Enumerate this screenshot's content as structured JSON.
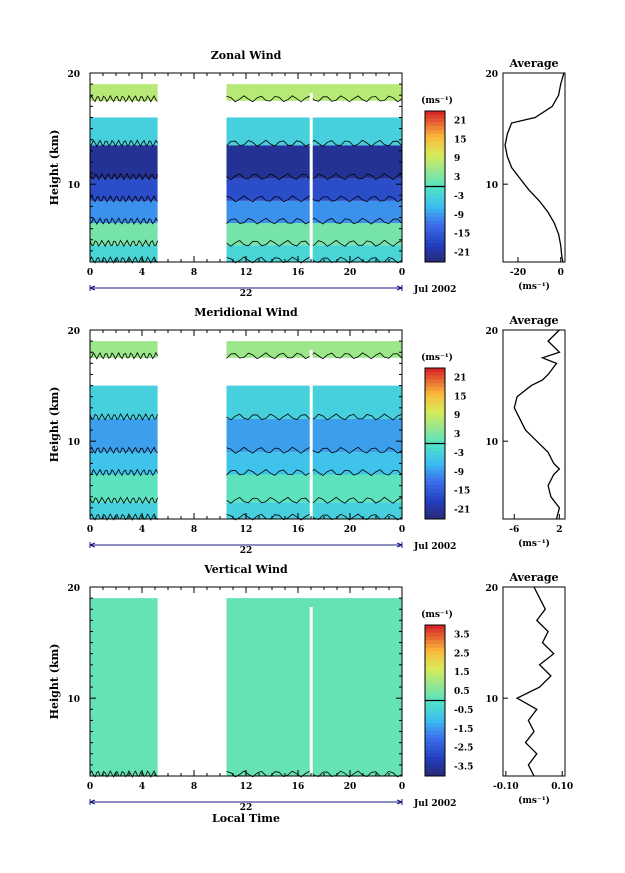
{
  "chart_data": [
    {
      "type": "heatmap",
      "title": "Zonal Wind",
      "ylabel": "Height (km)",
      "xticks": [
        "0",
        "4",
        "8",
        "12",
        "16",
        "20",
        "0"
      ],
      "yticks": [
        "10",
        "20"
      ],
      "ylim": [
        3,
        20
      ],
      "xlim": [
        0,
        24
      ],
      "day_label": "22",
      "date_label": "Jul 2002",
      "colorbar": {
        "unit": "(ms⁻¹)",
        "ticks": [
          "21",
          "15",
          "9",
          "3",
          "-3",
          "-9",
          "-15",
          "-21"
        ],
        "range": [
          -24,
          24
        ]
      },
      "data_gaps_hours": [
        [
          5.2,
          10.5
        ]
      ],
      "layers": [
        {
          "z": [
            3,
            4.5
          ],
          "value": -2
        },
        {
          "z": [
            4.5,
            6.5
          ],
          "value": 3
        },
        {
          "z": [
            6.5,
            8.5
          ],
          "value": -9
        },
        {
          "z": [
            8.5,
            10.5
          ],
          "value": -16
        },
        {
          "z": [
            10.5,
            13.5
          ],
          "value": -21
        },
        {
          "z": [
            13.5,
            16
          ],
          "value": -3
        },
        {
          "z": [
            17.5,
            19
          ],
          "value": 8
        }
      ],
      "average": {
        "title": "Average",
        "xlabel": "(ms⁻¹)",
        "xticks": [
          "-20",
          "0"
        ],
        "xlim": [
          -27,
          2
        ],
        "profile": [
          [
            1,
            3
          ],
          [
            0.5,
            3.5
          ],
          [
            0,
            4.5
          ],
          [
            -1,
            5.5
          ],
          [
            -3,
            6.5
          ],
          [
            -6,
            7.5
          ],
          [
            -10,
            8.5
          ],
          [
            -15,
            9.5
          ],
          [
            -19,
            10.5
          ],
          [
            -23,
            11.5
          ],
          [
            -25,
            12.5
          ],
          [
            -26,
            13.5
          ],
          [
            -25,
            14.5
          ],
          [
            -23,
            15.5
          ],
          [
            -12,
            16
          ],
          [
            -4,
            17
          ],
          [
            -1,
            18
          ],
          [
            0,
            19
          ],
          [
            1.5,
            20
          ]
        ]
      }
    },
    {
      "type": "heatmap",
      "title": "Meridional Wind",
      "ylabel": "Height (km)",
      "xticks": [
        "0",
        "4",
        "8",
        "12",
        "16",
        "20",
        "0"
      ],
      "yticks": [
        "10",
        "20"
      ],
      "ylim": [
        3,
        20
      ],
      "xlim": [
        0,
        24
      ],
      "day_label": "22",
      "date_label": "Jul 2002",
      "colorbar": {
        "unit": "(ms⁻¹)",
        "ticks": [
          "21",
          "15",
          "9",
          "3",
          "-3",
          "-9",
          "-15",
          "-21"
        ],
        "range": [
          -24,
          24
        ]
      },
      "data_gaps_hours": [
        [
          5.2,
          10.5
        ]
      ],
      "layers": [
        {
          "z": [
            3,
            4.5
          ],
          "value": -3
        },
        {
          "z": [
            4.5,
            7
          ],
          "value": 1
        },
        {
          "z": [
            7,
            9
          ],
          "value": -5
        },
        {
          "z": [
            9,
            12
          ],
          "value": -8
        },
        {
          "z": [
            12,
            15
          ],
          "value": -3
        },
        {
          "z": [
            17.5,
            19
          ],
          "value": 6
        }
      ],
      "average": {
        "title": "Average",
        "xlabel": "(ms⁻¹)",
        "xticks": [
          "-6",
          "2"
        ],
        "xlim": [
          -8,
          3
        ],
        "profile": [
          [
            1.5,
            3
          ],
          [
            2,
            4
          ],
          [
            0.5,
            5
          ],
          [
            0,
            6
          ],
          [
            1,
            7
          ],
          [
            2,
            7.5
          ],
          [
            1,
            8
          ],
          [
            0,
            9
          ],
          [
            -2,
            10
          ],
          [
            -4,
            11
          ],
          [
            -5,
            12
          ],
          [
            -6,
            13
          ],
          [
            -5.5,
            14
          ],
          [
            -3,
            15
          ],
          [
            -1,
            15.5
          ],
          [
            0,
            16
          ],
          [
            1.5,
            17
          ],
          [
            -1,
            17.5
          ],
          [
            2,
            18
          ],
          [
            0,
            19
          ],
          [
            2,
            20
          ]
        ]
      }
    },
    {
      "type": "heatmap",
      "title": "Vertical Wind",
      "ylabel": "Height (km)",
      "xticks": [
        "0",
        "4",
        "8",
        "12",
        "16",
        "20",
        "0"
      ],
      "yticks": [
        "10",
        "20"
      ],
      "ylim": [
        3,
        20
      ],
      "xlim": [
        0,
        24
      ],
      "day_label": "22",
      "date_label": "Jul 2002",
      "xlabel": "Local Time",
      "colorbar": {
        "unit": "(ms⁻¹)",
        "ticks": [
          "3.5",
          "2.5",
          "1.5",
          "0.5",
          "-0.5",
          "-1.5",
          "-2.5",
          "-3.5"
        ],
        "range": [
          -4,
          4
        ]
      },
      "data_gaps_hours": [
        [
          5.2,
          10.5
        ]
      ],
      "layers": [
        {
          "z": [
            3,
            19
          ],
          "value": 0.3
        }
      ],
      "average": {
        "title": "Average",
        "xlabel": "(ms⁻¹)",
        "xticks": [
          "-0.10",
          "0.10"
        ],
        "xlim": [
          -0.11,
          0.11
        ],
        "profile": [
          [
            0.0,
            3
          ],
          [
            -0.02,
            4
          ],
          [
            0.01,
            5
          ],
          [
            -0.03,
            6
          ],
          [
            0.0,
            7
          ],
          [
            -0.02,
            8
          ],
          [
            0.01,
            9
          ],
          [
            -0.06,
            10
          ],
          [
            0.02,
            11
          ],
          [
            0.06,
            12
          ],
          [
            0.02,
            13
          ],
          [
            0.07,
            14
          ],
          [
            0.03,
            15
          ],
          [
            0.05,
            16
          ],
          [
            0.01,
            17
          ],
          [
            0.04,
            18
          ],
          [
            0.02,
            19
          ],
          [
            0.0,
            20
          ]
        ]
      }
    }
  ]
}
